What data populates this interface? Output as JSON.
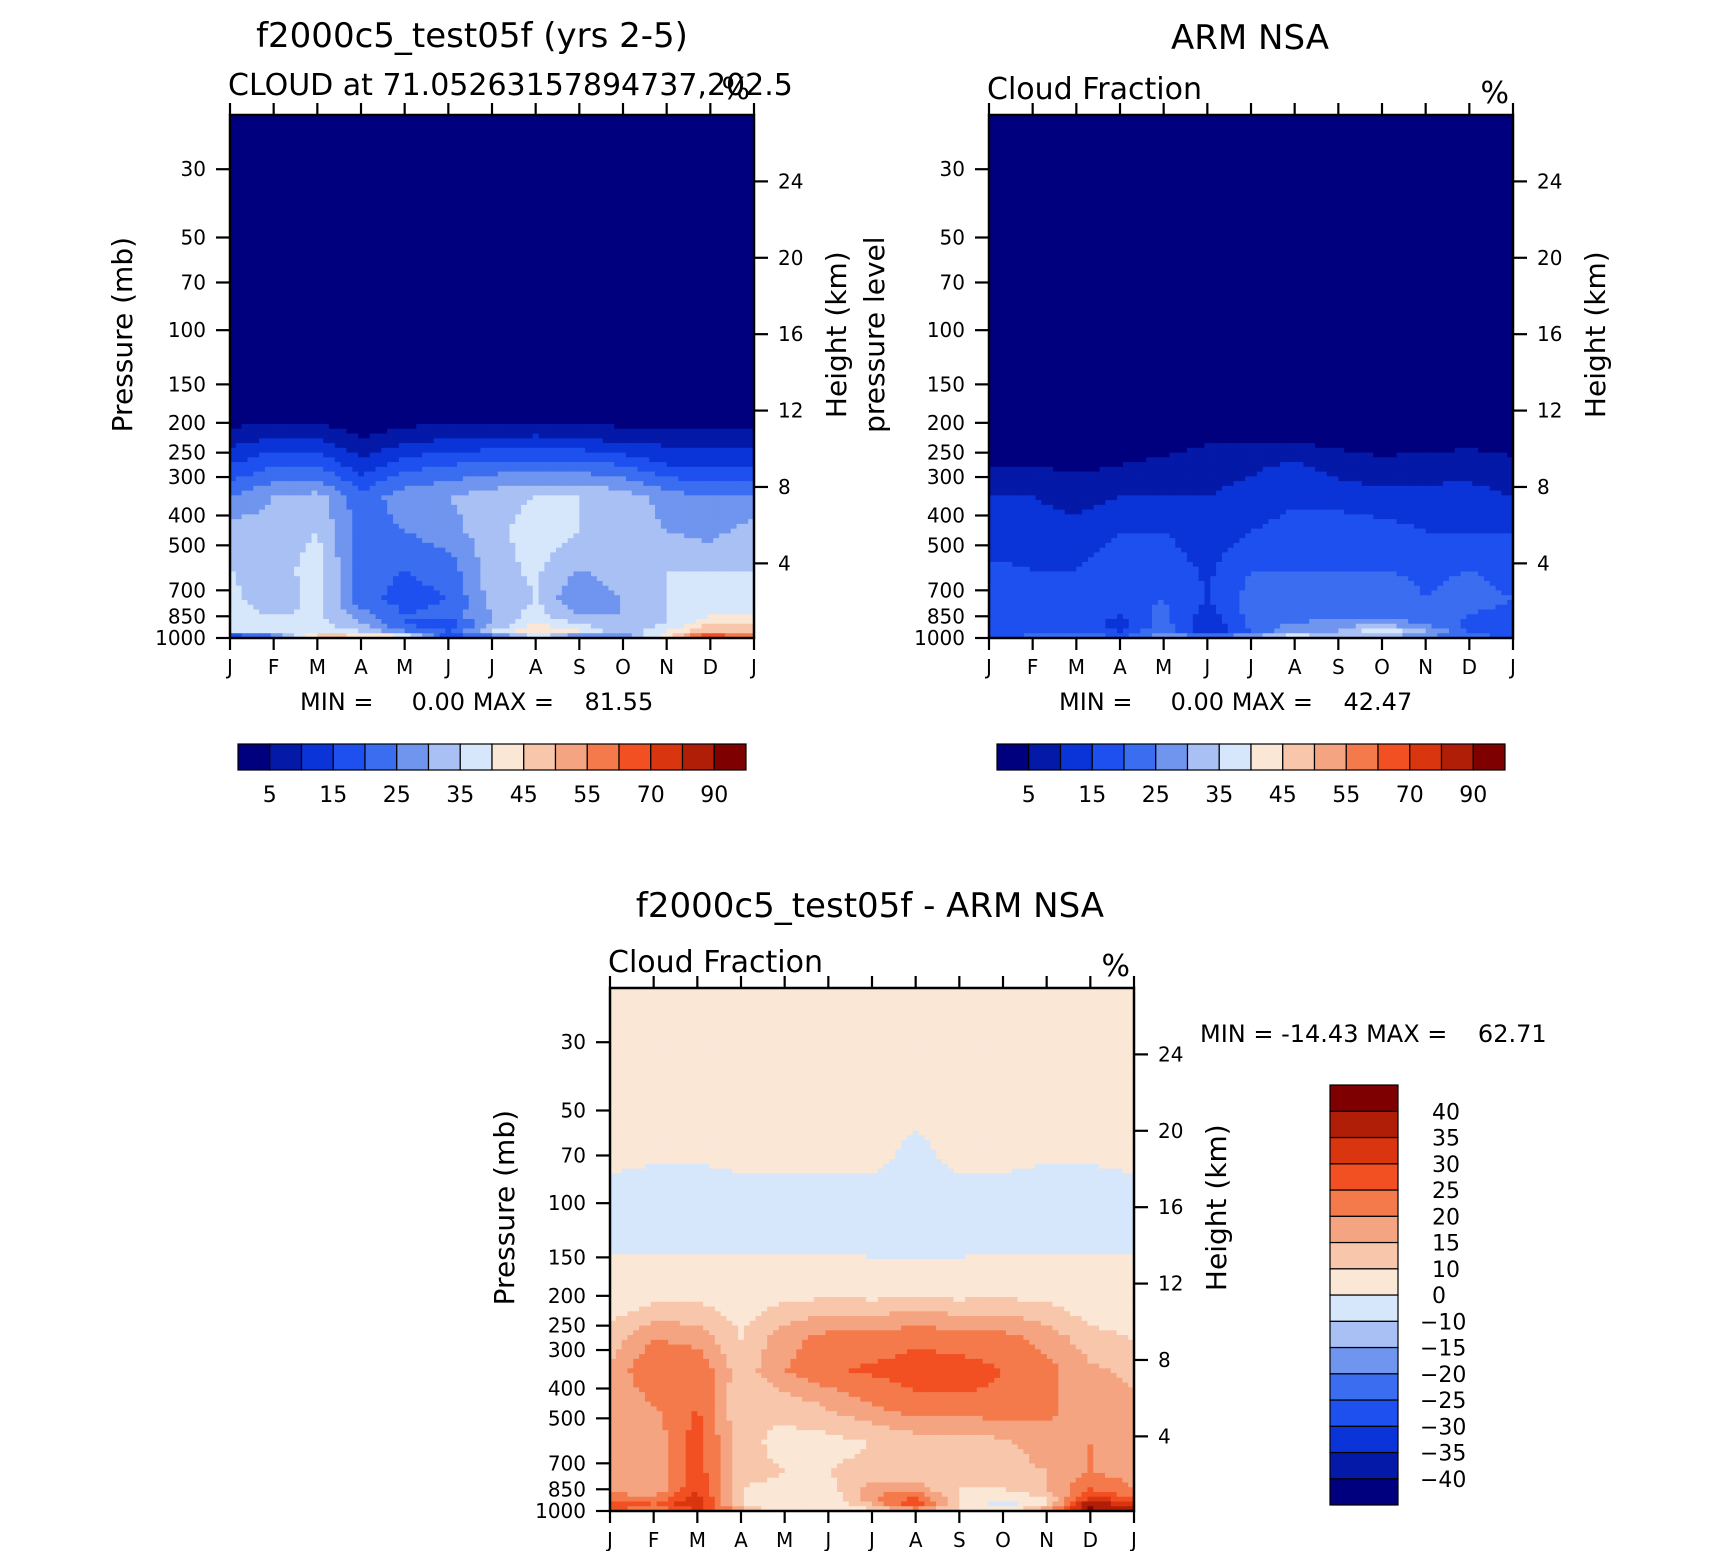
{
  "figure": {
    "months": [
      "J",
      "F",
      "M",
      "A",
      "M",
      "J",
      "J",
      "A",
      "S",
      "O",
      "N",
      "D",
      "J"
    ],
    "pressure_ticks": [
      30,
      50,
      70,
      100,
      150,
      200,
      250,
      300,
      400,
      500,
      700,
      850,
      1000
    ],
    "height_ticks": [
      4,
      8,
      12,
      16,
      20,
      24
    ],
    "pressure_label": "Pressure (mb)",
    "height_label": "Height (km)"
  },
  "chart_data": [
    {
      "type": "heatmap",
      "title": "f2000c5_test05f (yrs 2-5)",
      "subtitle": "CLOUD at 71.05263157894737,202.5",
      "units": "%",
      "ylabel": "Pressure (mb)",
      "ylabel_right": "Height (km)",
      "min_max_text": "MIN =     0.00 MAX =    81.55",
      "min": 0.0,
      "max": 81.55,
      "ylim": [
        20,
        1000
      ],
      "yscale": "log",
      "levels": [
        5,
        10,
        15,
        20,
        25,
        30,
        35,
        40,
        45,
        50,
        55,
        60,
        70,
        80,
        90
      ],
      "colorbar_labels": [
        "5",
        "15",
        "25",
        "35",
        "45",
        "55",
        "70",
        "90"
      ],
      "x": [
        0,
        1,
        2,
        3,
        4,
        5,
        6,
        7,
        8,
        9,
        10,
        11,
        12
      ],
      "p": [
        1000,
        950,
        900,
        850,
        750,
        600,
        450,
        350,
        275,
        225,
        180
      ],
      "values": [
        [
          5,
          20,
          50,
          50,
          45,
          15,
          20,
          35,
          20,
          25,
          45,
          70,
          60
        ],
        [
          40,
          37,
          37,
          35,
          25,
          20,
          35,
          45,
          40,
          30,
          40,
          50,
          45
        ],
        [
          40,
          35,
          37,
          30,
          20,
          15,
          30,
          40,
          35,
          30,
          35,
          45,
          45
        ],
        [
          38,
          35,
          36,
          28,
          20,
          22,
          30,
          38,
          30,
          30,
          35,
          40,
          40
        ],
        [
          37,
          30,
          38,
          22,
          18,
          20,
          32,
          35,
          25,
          30,
          35,
          37,
          37
        ],
        [
          35,
          32,
          38,
          22,
          20,
          22,
          33,
          36,
          30,
          33,
          35,
          35,
          35
        ],
        [
          33,
          32,
          35,
          22,
          25,
          28,
          33,
          38,
          35,
          33,
          30,
          28,
          33
        ],
        [
          25,
          30,
          32,
          22,
          28,
          30,
          33,
          35,
          35,
          33,
          28,
          25,
          25
        ],
        [
          15,
          20,
          20,
          12,
          18,
          20,
          22,
          22,
          22,
          20,
          15,
          15,
          15
        ],
        [
          8,
          10,
          10,
          5,
          8,
          10,
          10,
          11,
          10,
          8,
          8,
          8,
          8
        ],
        [
          0,
          0,
          0,
          0,
          0,
          0,
          0,
          0,
          0,
          0,
          0,
          0,
          0
        ]
      ]
    },
    {
      "type": "heatmap",
      "title": "ARM NSA",
      "subtitle": "Cloud Fraction",
      "units": "%",
      "ylabel": "pressure level",
      "ylabel_right": "Height (km)",
      "min_max_text": "MIN =     0.00 MAX =    42.47",
      "min": 0.0,
      "max": 42.47,
      "ylim": [
        20,
        1000
      ],
      "yscale": "log",
      "levels": [
        5,
        10,
        15,
        20,
        25,
        30,
        35,
        40,
        45,
        50,
        55,
        60,
        70,
        80,
        90
      ],
      "colorbar_labels": [
        "5",
        "15",
        "25",
        "35",
        "45",
        "55",
        "70",
        "90"
      ],
      "x": [
        0,
        1,
        2,
        3,
        4,
        5,
        6,
        7,
        8,
        9,
        10,
        11,
        12
      ],
      "p": [
        1000,
        950,
        900,
        850,
        750,
        600,
        450,
        350,
        275,
        225,
        180
      ],
      "values": [
        [
          20,
          22,
          25,
          20,
          28,
          30,
          30,
          42,
          30,
          30,
          25,
          22,
          20
        ],
        [
          15,
          18,
          20,
          15,
          25,
          10,
          20,
          30,
          30,
          40,
          30,
          20,
          15
        ],
        [
          15,
          17,
          20,
          12,
          22,
          10,
          22,
          25,
          28,
          28,
          25,
          18,
          15
        ],
        [
          15,
          16,
          18,
          15,
          22,
          12,
          22,
          22,
          24,
          24,
          22,
          20,
          18
        ],
        [
          16,
          15,
          15,
          18,
          20,
          15,
          22,
          22,
          24,
          24,
          20,
          22,
          20
        ],
        [
          16,
          15,
          15,
          18,
          18,
          14,
          20,
          20,
          20,
          20,
          19,
          20,
          18
        ],
        [
          12,
          12,
          12,
          15,
          15,
          12,
          15,
          17,
          18,
          17,
          15,
          15,
          15
        ],
        [
          10,
          10,
          8,
          10,
          10,
          10,
          12,
          14,
          13,
          12,
          12,
          12,
          10
        ],
        [
          5,
          5,
          4,
          5,
          6,
          8,
          9,
          11,
          8,
          6,
          7,
          8,
          6
        ],
        [
          2,
          2,
          2,
          2,
          3,
          4,
          4,
          4,
          3,
          3,
          3,
          3,
          3
        ],
        [
          0,
          0,
          0,
          0,
          0,
          0,
          0,
          0,
          0,
          0,
          0,
          0,
          0
        ]
      ]
    },
    {
      "type": "heatmap",
      "title": "f2000c5_test05f - ARM NSA",
      "subtitle": "Cloud Fraction",
      "units": "%",
      "ylabel": "Pressure (mb)",
      "ylabel_right": "Height (km)",
      "min_max_text": "MIN = -14.43 MAX =    62.71",
      "min": -14.43,
      "max": 62.71,
      "ylim": [
        20,
        1000
      ],
      "yscale": "log",
      "levels": [
        -40,
        -35,
        -30,
        -25,
        -20,
        -15,
        -10,
        0,
        10,
        15,
        20,
        25,
        30,
        35,
        40
      ],
      "colorbar_labels": [
        "-40",
        "-35",
        "-30",
        "-25",
        "-20",
        "-15",
        "-10",
        "0",
        "10",
        "15",
        "20",
        "25",
        "30",
        "35",
        "40"
      ],
      "x": [
        0,
        1,
        2,
        3,
        4,
        5,
        6,
        7,
        8,
        9,
        10,
        11,
        12
      ],
      "p": [
        1000,
        950,
        900,
        850,
        750,
        600,
        450,
        350,
        275,
        225,
        180,
        130,
        90,
        70,
        50,
        30
      ],
      "values": [
        [
          25,
          20,
          30,
          20,
          0,
          -2,
          10,
          15,
          10,
          10,
          20,
          40,
          40
        ],
        [
          30,
          25,
          35,
          10,
          8,
          5,
          15,
          30,
          10,
          -5,
          10,
          40,
          30
        ],
        [
          22,
          20,
          32,
          10,
          8,
          5,
          20,
          25,
          10,
          5,
          10,
          30,
          25
        ],
        [
          20,
          15,
          30,
          10,
          8,
          8,
          18,
          18,
          10,
          10,
          15,
          25,
          20
        ],
        [
          20,
          15,
          28,
          12,
          10,
          10,
          12,
          12,
          10,
          12,
          15,
          20,
          18
        ],
        [
          18,
          16,
          28,
          12,
          8,
          8,
          10,
          12,
          12,
          14,
          18,
          20,
          18
        ],
        [
          16,
          20,
          25,
          10,
          12,
          16,
          20,
          24,
          24,
          24,
          22,
          16,
          16
        ],
        [
          16,
          25,
          25,
          12,
          20,
          24,
          26,
          27,
          27,
          25,
          22,
          16,
          14
        ],
        [
          12,
          20,
          18,
          10,
          18,
          22,
          22,
          24,
          23,
          22,
          18,
          12,
          10
        ],
        [
          8,
          12,
          12,
          8,
          12,
          14,
          14,
          15,
          14,
          14,
          12,
          8,
          6
        ],
        [
          5,
          5,
          5,
          5,
          5,
          5,
          4,
          4,
          4,
          5,
          5,
          5,
          5
        ],
        [
          -3,
          -3,
          -3,
          -3,
          -3,
          -3,
          -3,
          -3,
          -3,
          -3,
          -3,
          -3,
          -3
        ],
        [
          -3,
          -3,
          -3,
          -3,
          -3,
          -3,
          -3,
          -3,
          -3,
          -3,
          -3,
          -3,
          -3
        ],
        [
          3,
          1,
          1,
          3,
          3,
          3,
          3,
          -3,
          3,
          3,
          1,
          1,
          3
        ],
        [
          3,
          3,
          3,
          3,
          3,
          3,
          3,
          3,
          3,
          3,
          3,
          3,
          3
        ],
        [
          3,
          3,
          3,
          3,
          3,
          3,
          3,
          3,
          3,
          3,
          3,
          3,
          3
        ]
      ]
    }
  ],
  "colors": {
    "abs_levels": [
      "#00007f",
      "#0519a8",
      "#0a34d7",
      "#1e50f0",
      "#3a6df0",
      "#6f95ef",
      "#a9c0f4",
      "#d6e6fb",
      "#fbe7d6",
      "#f8c6aa",
      "#f4a480",
      "#f47a4c",
      "#f24f22",
      "#d9350f",
      "#b11e08",
      "#7f0000"
    ],
    "diff_levels": [
      "#00007f",
      "#0519a8",
      "#0a34d7",
      "#1e50f0",
      "#3a6df0",
      "#6f95ef",
      "#a9c0f4",
      "#d6e6fb",
      "#fbe7d6",
      "#f8c6aa",
      "#f4a480",
      "#f47a4c",
      "#f24f22",
      "#d9350f",
      "#b11e08",
      "#7f0000"
    ]
  }
}
